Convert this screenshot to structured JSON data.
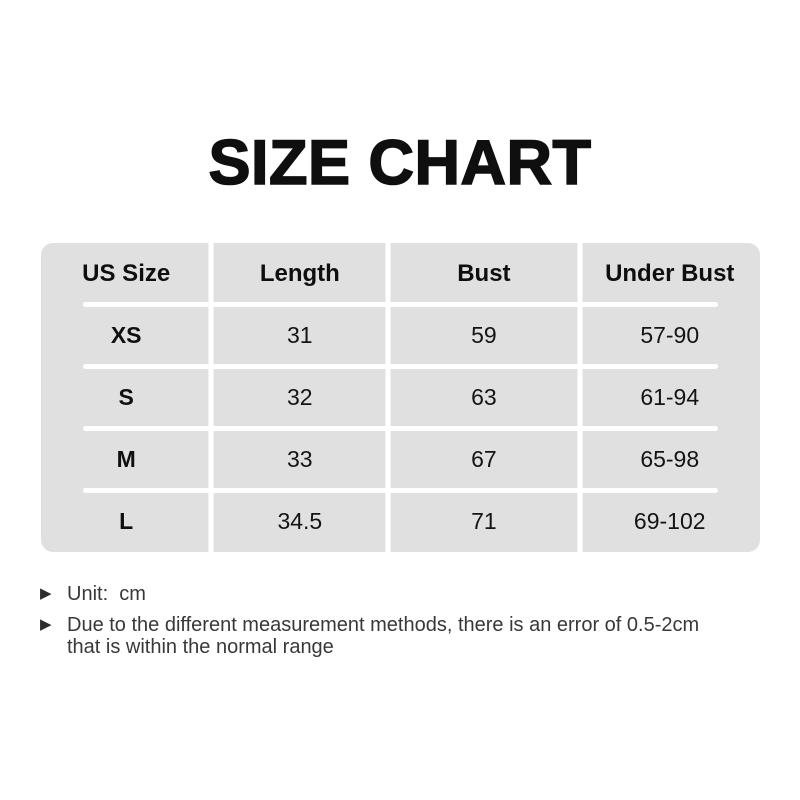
{
  "title": "SIZE CHART",
  "chart_data": {
    "type": "table",
    "title": "SIZE CHART",
    "unit": "cm",
    "columns": [
      "US Size",
      "Length",
      "Bust",
      "Under Bust"
    ],
    "rows": [
      [
        "XS",
        "31",
        "59",
        "57-90"
      ],
      [
        "S",
        "32",
        "63",
        "61-94"
      ],
      [
        "M",
        "33",
        "67",
        "65-98"
      ],
      [
        "L",
        "34.5",
        "71",
        "69-102"
      ]
    ]
  },
  "notes": {
    "bullet_char": "▶",
    "items": [
      "Unit:  cm",
      "Due to the different measurement methods, there is an error of 0.5-2cm that is within the normal range"
    ]
  },
  "colors": {
    "table_background": "#e0e0e0",
    "divider": "#ffffff",
    "title_text": "#0f0f0f",
    "body_text": "#141414",
    "note_text": "#383838"
  }
}
